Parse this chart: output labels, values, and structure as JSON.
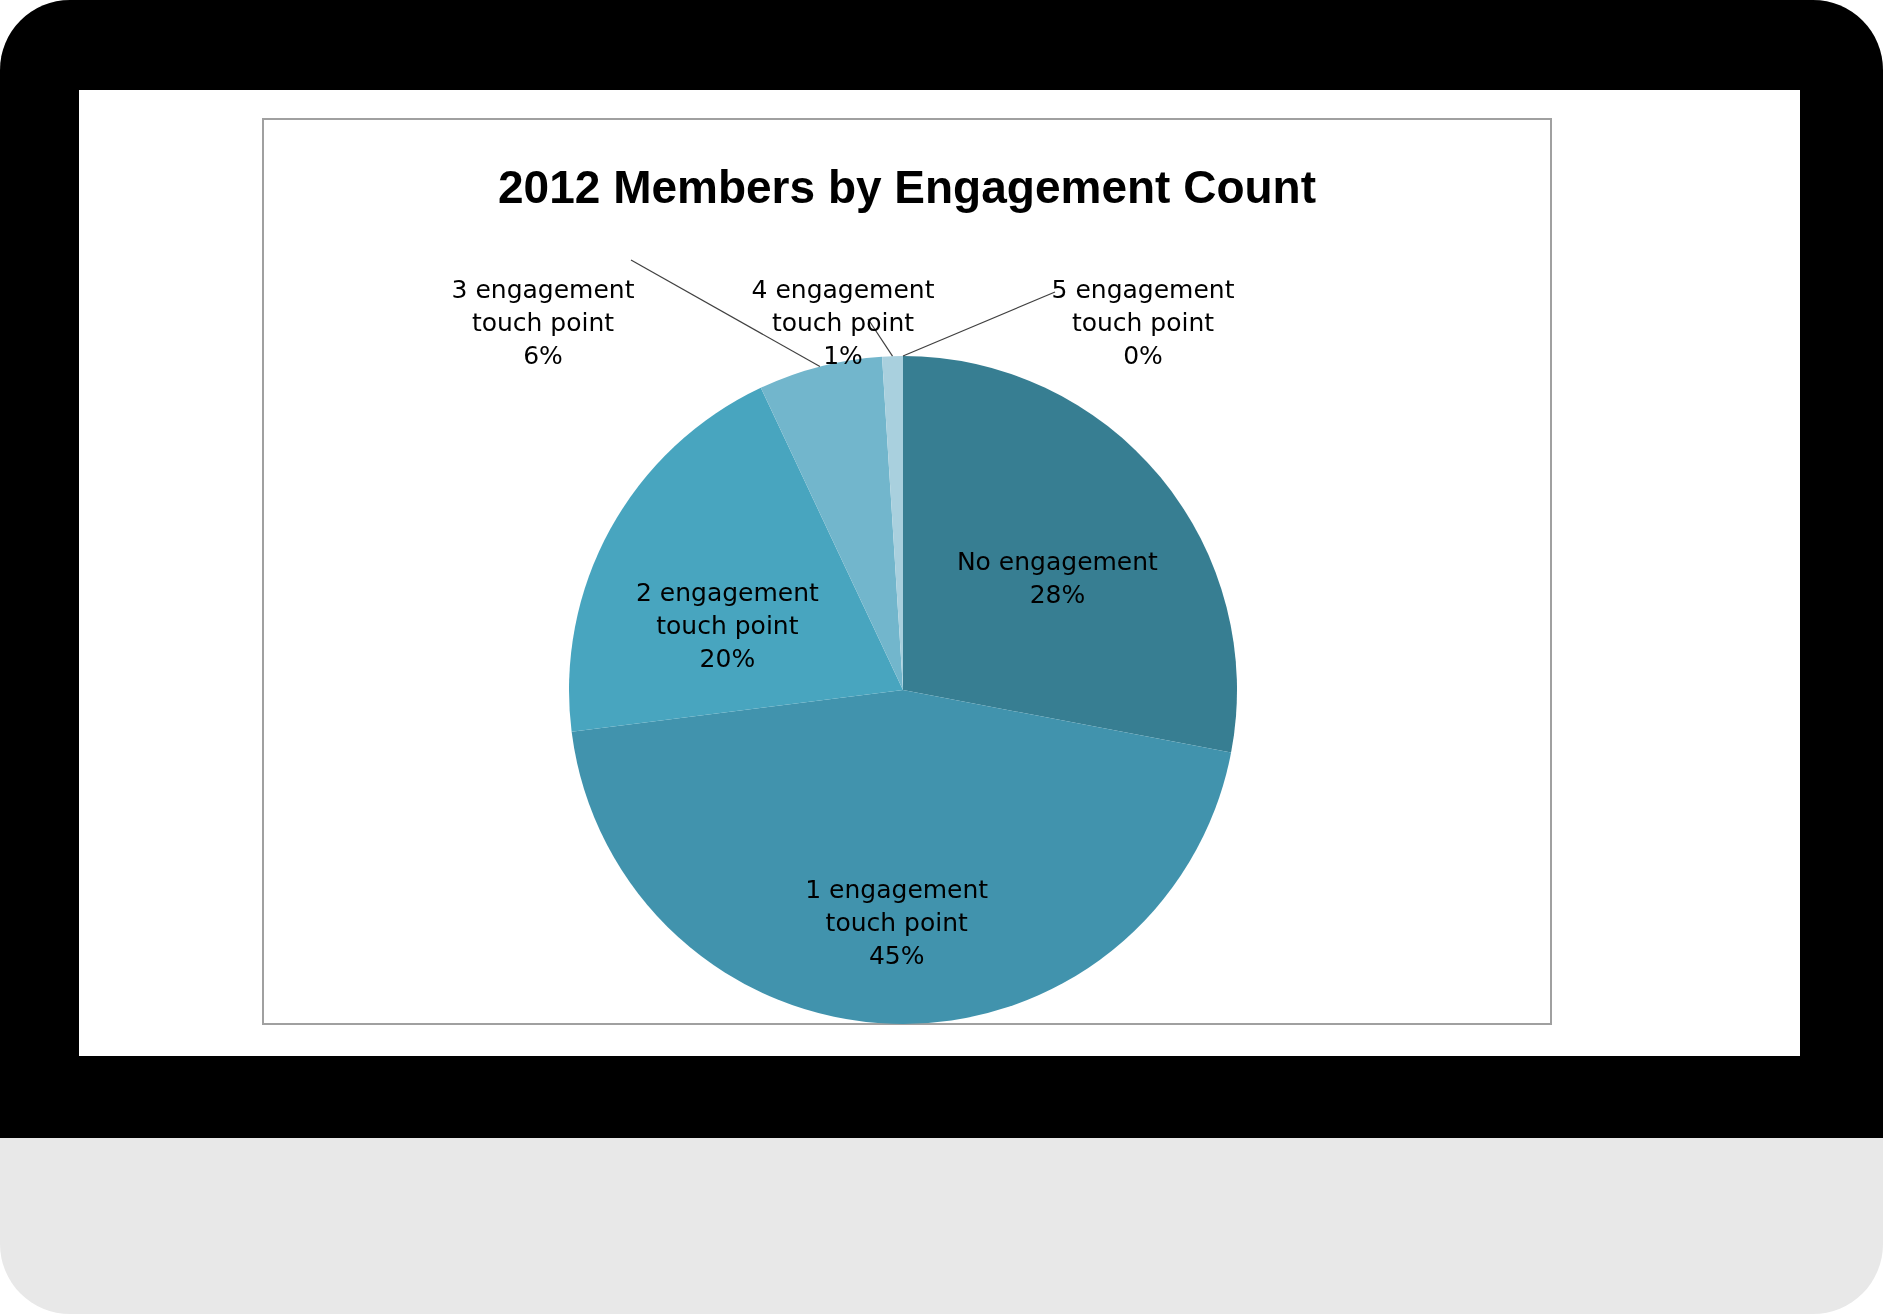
{
  "chart_data": {
    "type": "pie",
    "title": "2012 Members by Engagement Count",
    "categories": [
      "No engagement",
      "1 engagement touch point",
      "2 engagement touch point",
      "3 engagement touch point",
      "4 engagement touch point",
      "5 engagement touch point"
    ],
    "values": [
      28,
      45,
      20,
      6,
      1,
      0
    ],
    "value_labels": [
      "28%",
      "45%",
      "20%",
      "6%",
      "1%",
      "0%"
    ],
    "colors": [
      "#377e92",
      "#4193ad",
      "#48a5bf",
      "#72b6cc",
      "#a9d0de",
      "#c8e2ea"
    ],
    "legend": false
  }
}
